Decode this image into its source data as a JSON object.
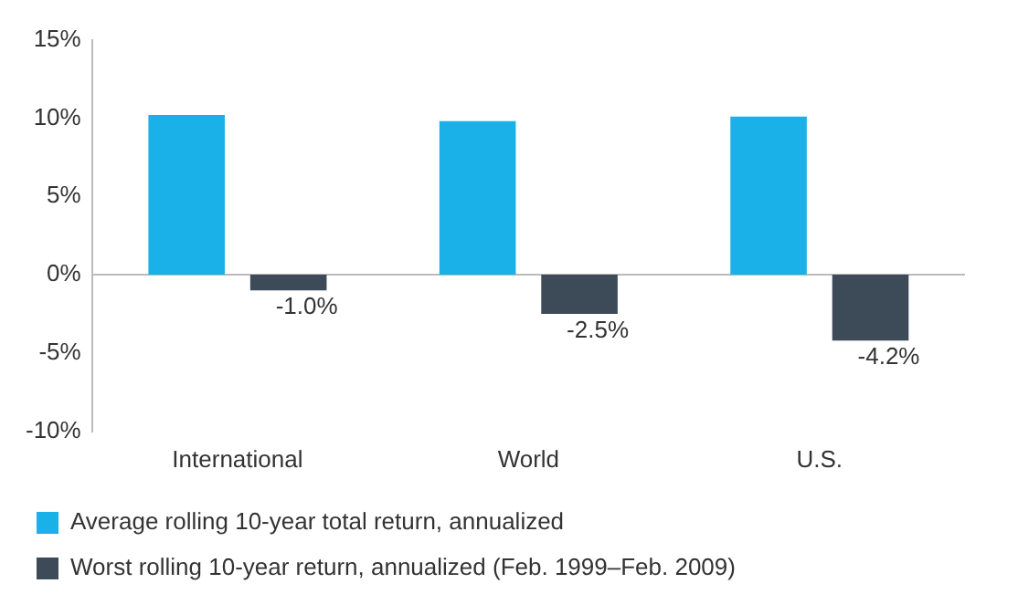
{
  "chart_data": {
    "type": "bar",
    "categories": [
      "International",
      "World",
      "U.S."
    ],
    "series": [
      {
        "name": "Average rolling 10-year total return, annualized",
        "color": "#1ab0e8",
        "values": [
          10.2,
          9.8,
          10.1
        ]
      },
      {
        "name": "Worst rolling 10-year return, annualized (Feb. 1999–Feb. 2009)",
        "color": "#3d4a57",
        "values": [
          -1.0,
          -2.5,
          -4.2
        ],
        "value_labels": [
          "-1.0%",
          "-2.5%",
          "-4.2%"
        ]
      }
    ],
    "ylim": [
      -10,
      15
    ],
    "yticks": [
      {
        "value": -10,
        "label": "-10%"
      },
      {
        "value": -5,
        "label": "-5%"
      },
      {
        "value": 0,
        "label": "0%"
      },
      {
        "value": 5,
        "label": "5%"
      },
      {
        "value": 10,
        "label": "10%"
      },
      {
        "value": 15,
        "label": "15%"
      }
    ],
    "ref_lines": [
      {
        "axis": "y",
        "value": 0,
        "color": "#bbbbbb"
      }
    ],
    "legend": "bottom"
  }
}
